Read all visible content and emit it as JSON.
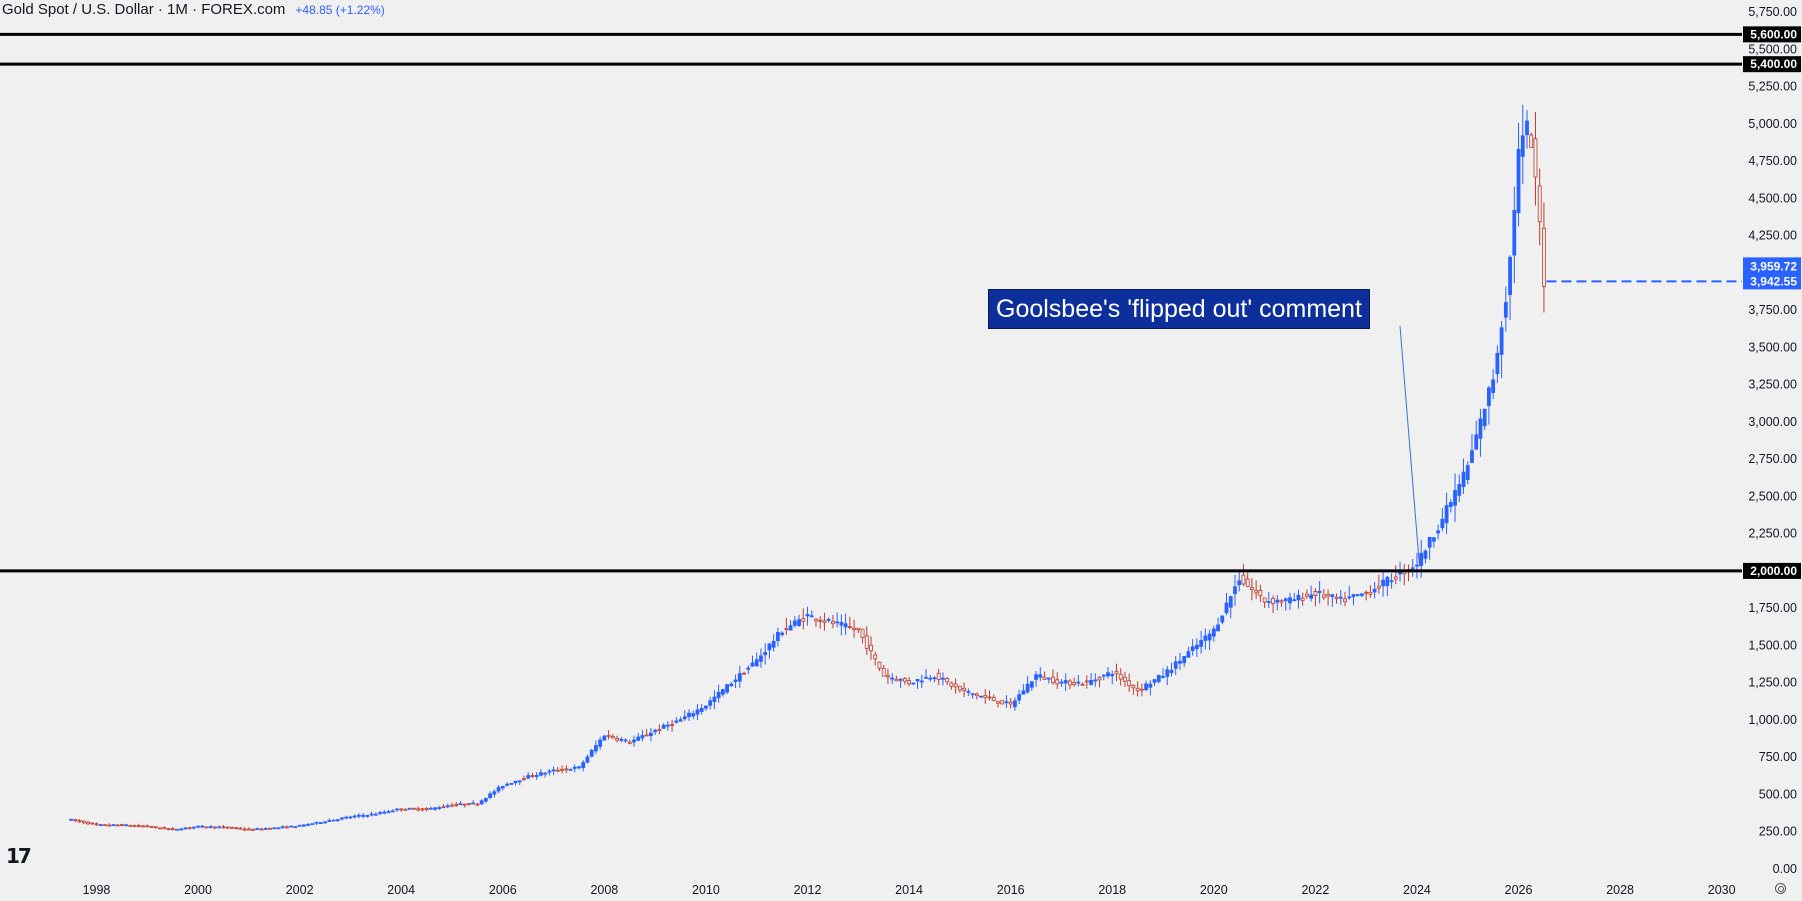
{
  "header": {
    "title": "Gold Spot / U.S. Dollar · 1M · FOREX.com",
    "change": "+48.85 (+1.22%)"
  },
  "annotation": {
    "text": "Goolsbee's 'flipped out' comment",
    "target_date": 2024.05,
    "target_price": 2030
  },
  "chart_data": {
    "type": "candlestick",
    "xlim": [
      1996.1,
      2030.4
    ],
    "ylim": [
      0,
      5750
    ],
    "y_ticks": [
      0,
      250,
      500,
      750,
      1000,
      1250,
      1500,
      1750,
      2000,
      2250,
      2500,
      2750,
      3000,
      3250,
      3500,
      3750,
      4000,
      4250,
      4500,
      4750,
      5000,
      5250,
      5500,
      5750
    ],
    "y_tick_labels": [
      "0.00",
      "250.00",
      "500.00",
      "750.00",
      "1,000.00",
      "1,250.00",
      "1,500.00",
      "1,750.00",
      "2,000.00",
      "2,250.00",
      "2,500.00",
      "2,750.00",
      "3,000.00",
      "3,250.00",
      "3,500.00",
      "3,750.00",
      "4,000.00",
      "4,250.00",
      "4,500.00",
      "4,750.00",
      "5,000.00",
      "5,250.00",
      "5,500.00",
      "5,750.00"
    ],
    "x_ticks": [
      1998,
      2000,
      2002,
      2004,
      2006,
      2008,
      2010,
      2012,
      2014,
      2016,
      2018,
      2020,
      2022,
      2024,
      2026,
      2028,
      2030
    ],
    "x_tick_labels": [
      "1998",
      "2000",
      "2002",
      "2004",
      "2006",
      "2008",
      "2010",
      "2012",
      "2014",
      "2016",
      "2018",
      "2020",
      "2022",
      "2024",
      "2026",
      "2028",
      "2030"
    ],
    "series": [
      {
        "x": [
          1997.5,
          1998.0,
          1998.5,
          1999.0,
          1999.5,
          2000.0,
          2000.5,
          2001.0,
          2001.5,
          2002.0,
          2002.5,
          2003.0,
          2003.5,
          2004.0,
          2004.5,
          2005.0,
          2005.5,
          2006.0,
          2006.5,
          2007.0,
          2007.5,
          2008.0,
          2008.5,
          2009.0,
          2009.5,
          2010.0,
          2010.5,
          2011.0,
          2011.5,
          2012.0,
          2012.5,
          2013.0,
          2013.5,
          2014.0,
          2014.5,
          2015.0,
          2015.5,
          2016.0,
          2016.5,
          2017.0,
          2017.5,
          2018.0,
          2018.5,
          2019.0,
          2019.5,
          2020.0,
          2020.5,
          2021.0,
          2021.5,
          2022.0,
          2022.5,
          2023.0,
          2023.5,
          2024.0,
          2024.5,
          2025.0,
          2025.5,
          2025.8,
          2026.0,
          2026.2,
          2026.4,
          2026.5
        ],
        "y": [
          330,
          295,
          295,
          285,
          265,
          285,
          280,
          265,
          275,
          290,
          320,
          350,
          370,
          405,
          400,
          430,
          440,
          560,
          620,
          660,
          680,
          900,
          850,
          930,
          1000,
          1100,
          1250,
          1400,
          1600,
          1700,
          1650,
          1600,
          1300,
          1250,
          1300,
          1200,
          1150,
          1100,
          1300,
          1250,
          1250,
          1320,
          1200,
          1300,
          1450,
          1600,
          1950,
          1800,
          1800,
          1850,
          1800,
          1850,
          1950,
          2050,
          2350,
          2700,
          3300,
          3950,
          4800,
          5000,
          4400,
          3950
        ]
      }
    ],
    "horizontal_levels": [
      5600,
      5400,
      2000
    ],
    "price_badges": [
      "5,600.00",
      "5,400.00",
      "2,000.00",
      "3,959.72",
      "3,942.55"
    ],
    "last_price": 3942.55,
    "grid": false,
    "colors": {
      "up": "#2962ff",
      "down": "#c0392b",
      "level_line": "#000000",
      "badge_blue": "#2962ff",
      "annotation_bg": "#0d2f9c"
    }
  }
}
